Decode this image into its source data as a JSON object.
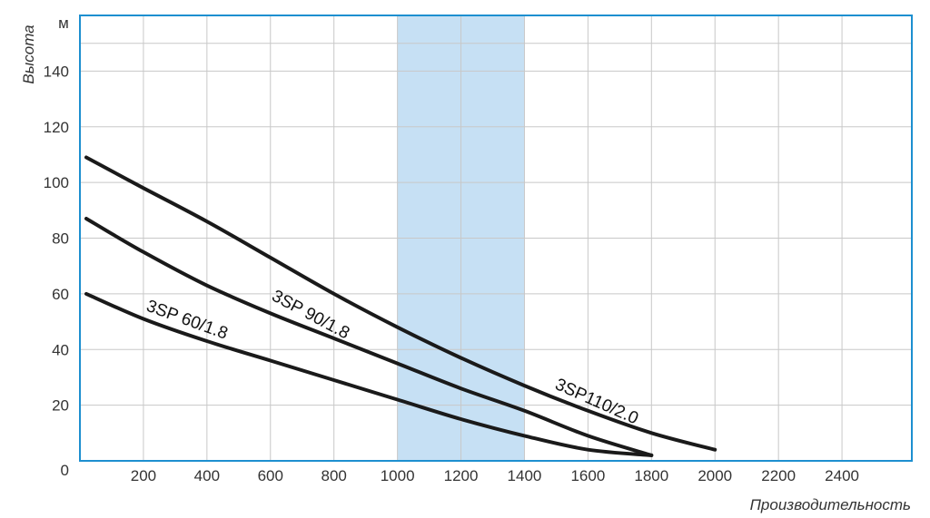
{
  "chart_data": {
    "type": "line",
    "xlabel": "Производительность",
    "ylabel": "Высота",
    "y_unit": "м",
    "xlim": [
      0,
      2620
    ],
    "ylim": [
      0,
      160
    ],
    "x_ticks": [
      200,
      400,
      600,
      800,
      1000,
      1200,
      1400,
      1600,
      1800,
      2000,
      2200,
      2400
    ],
    "x_tick_labels": [
      "200",
      "400",
      "600",
      "800",
      "1000",
      "1200",
      "1400",
      "1600",
      "1800",
      "2000",
      "2200",
      "2400"
    ],
    "y_ticks": [
      0,
      20,
      40,
      60,
      80,
      100,
      120,
      140
    ],
    "y_tick_labels": [
      "0",
      "20",
      "40",
      "60",
      "80",
      "100",
      "120",
      "140"
    ],
    "grid": true,
    "highlight_band": {
      "x_from": 1000,
      "x_to": 1400,
      "color": "#c6e0f4"
    },
    "colors": {
      "frame": "#1d8fd0",
      "grid": "#c8c8c8",
      "curve": "#1a1a1a"
    },
    "series": [
      {
        "name": "3SP 60/1.8",
        "x": [
          20,
          200,
          400,
          600,
          800,
          1000,
          1200,
          1400,
          1600,
          1800
        ],
        "y": [
          60,
          51,
          43,
          36,
          29,
          22,
          15,
          9,
          4,
          2
        ]
      },
      {
        "name": "3SP 90/1.8",
        "x": [
          20,
          200,
          400,
          600,
          800,
          1000,
          1200,
          1400,
          1600,
          1800
        ],
        "y": [
          87,
          75,
          63,
          53,
          44,
          35,
          26,
          18,
          9,
          2
        ]
      },
      {
        "name": "3SP110/2.0",
        "x": [
          20,
          200,
          400,
          600,
          800,
          1000,
          1200,
          1400,
          1600,
          1800,
          2000
        ],
        "y": [
          109,
          98,
          86,
          73,
          60,
          48,
          37,
          27,
          18,
          10,
          4
        ]
      }
    ]
  }
}
